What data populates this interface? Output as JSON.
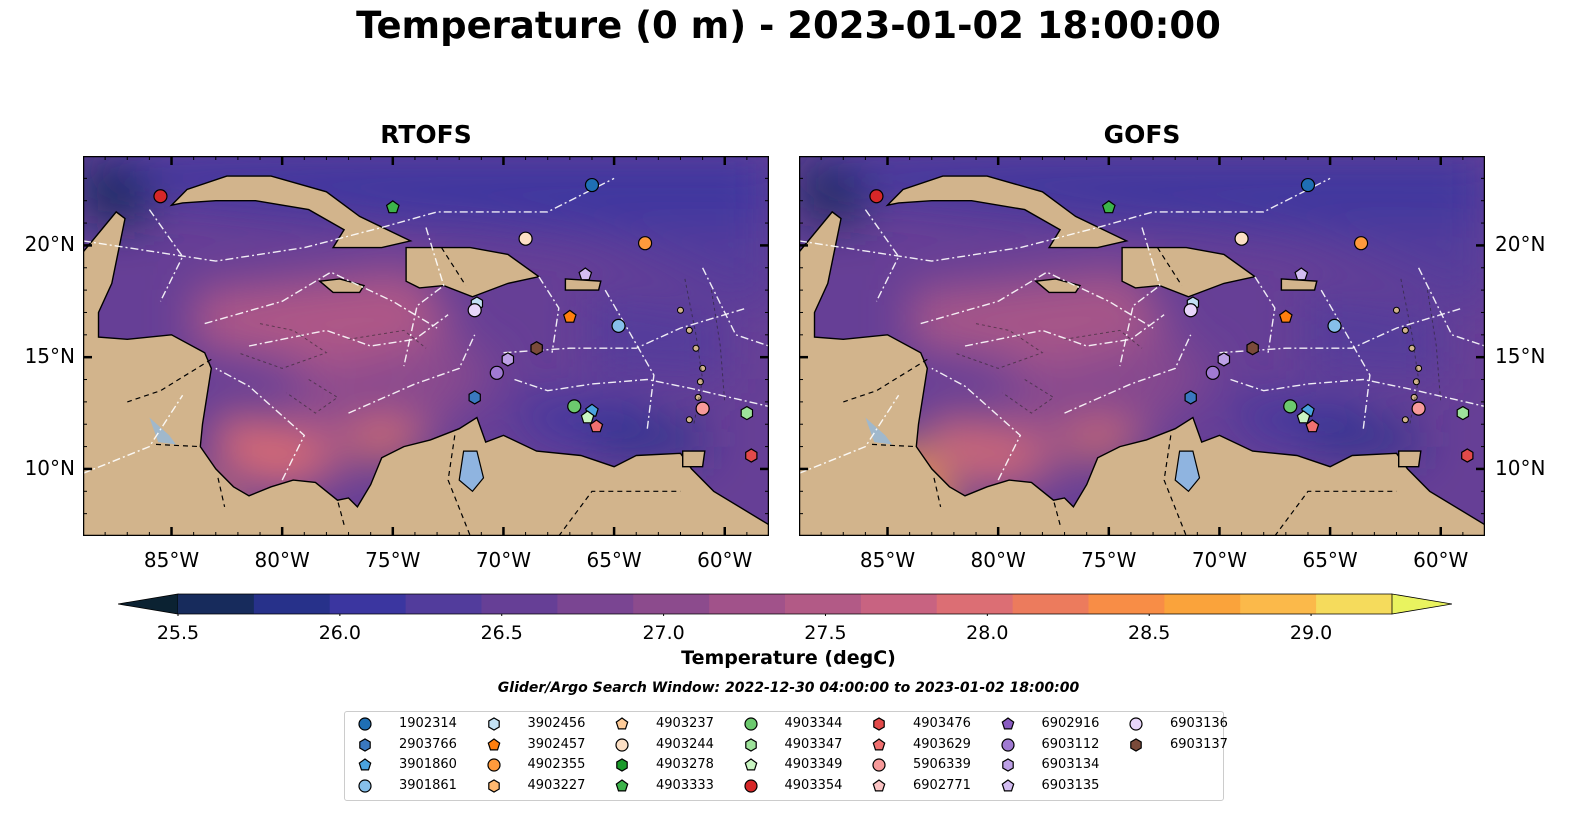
{
  "title": "Temperature (0 m) - 2023-01-02 18:00:00",
  "maps": [
    {
      "title": "RTOFS",
      "left": true
    },
    {
      "title": "GOFS",
      "left": false
    }
  ],
  "axes": {
    "lon_ticks": [
      "85°W",
      "80°W",
      "75°W",
      "70°W",
      "65°W",
      "60°W"
    ],
    "lat_ticks": [
      "20°N",
      "15°N",
      "10°N"
    ],
    "lon_values": [
      -85,
      -80,
      -75,
      -70,
      -65,
      -60
    ],
    "lat_values": [
      20,
      15,
      10
    ],
    "lon_range": [
      -89,
      -58
    ],
    "lat_range": [
      7,
      24
    ]
  },
  "colorbar": {
    "label": "Temperature (degC)",
    "ticks": [
      "25.5",
      "26.0",
      "26.5",
      "27.0",
      "27.5",
      "28.0",
      "28.5",
      "29.0"
    ],
    "range": [
      25.5,
      29.25
    ],
    "extend": "both",
    "colors": [
      "#0b2232",
      "#172b5c",
      "#27318a",
      "#3b36a0",
      "#523c9c",
      "#663f96",
      "#7a4592",
      "#8c4b8d",
      "#a1528a",
      "#b25a86",
      "#c86381",
      "#dc6e74",
      "#ec7b5d",
      "#f88d46",
      "#faa33b",
      "#fbb94a",
      "#f5db5c",
      "#e9f35f"
    ]
  },
  "search_window": "Glider/Argo Search Window: 2022-12-30 04:00:00 to 2023-01-02 18:00:00",
  "land_color": "#d2b48c",
  "legend": [
    {
      "id": "1902314",
      "marker": "circle",
      "color": "#1f6fb4"
    },
    {
      "id": "2903766",
      "marker": "hexagon",
      "color": "#3a78c0"
    },
    {
      "id": "3901860",
      "marker": "pentagon",
      "color": "#4aa3df"
    },
    {
      "id": "3901861",
      "marker": "circle",
      "color": "#86bfea"
    },
    {
      "id": "3902456",
      "marker": "hexagon",
      "color": "#c3e1f4"
    },
    {
      "id": "3902457",
      "marker": "pentagon",
      "color": "#ff7f0e"
    },
    {
      "id": "4902355",
      "marker": "circle",
      "color": "#ff9a3c"
    },
    {
      "id": "4903227",
      "marker": "hexagon",
      "color": "#ffb870"
    },
    {
      "id": "4903237",
      "marker": "pentagon",
      "color": "#ffcc99"
    },
    {
      "id": "4903244",
      "marker": "circle",
      "color": "#fde0c5"
    },
    {
      "id": "4903278",
      "marker": "hexagon",
      "color": "#1a9a2a"
    },
    {
      "id": "4903333",
      "marker": "pentagon",
      "color": "#3cb34a"
    },
    {
      "id": "4903344",
      "marker": "circle",
      "color": "#6cc96e"
    },
    {
      "id": "4903347",
      "marker": "hexagon",
      "color": "#9ee39b"
    },
    {
      "id": "4903349",
      "marker": "pentagon",
      "color": "#c9f5c2"
    },
    {
      "id": "4903354",
      "marker": "circle",
      "color": "#d62728"
    },
    {
      "id": "4903476",
      "marker": "hexagon",
      "color": "#e34a4a"
    },
    {
      "id": "4903629",
      "marker": "pentagon",
      "color": "#f07070"
    },
    {
      "id": "5906339",
      "marker": "circle",
      "color": "#f79a9a"
    },
    {
      "id": "6902771",
      "marker": "pentagon",
      "color": "#fbc4c4"
    },
    {
      "id": "6902916",
      "marker": "pentagon",
      "color": "#8a5cc2"
    },
    {
      "id": "6903112",
      "marker": "circle",
      "color": "#a07ad2"
    },
    {
      "id": "6903134",
      "marker": "hexagon",
      "color": "#bda0e6"
    },
    {
      "id": "6903135",
      "marker": "pentagon",
      "color": "#d4bdf2"
    },
    {
      "id": "6903136",
      "marker": "circle",
      "color": "#e8d6fa"
    },
    {
      "id": "6903137",
      "marker": "hexagon",
      "color": "#7a4a3a"
    }
  ],
  "floats": [
    {
      "id": "4903354",
      "lon": -85.5,
      "lat": 22.2
    },
    {
      "id": "1902314",
      "lon": -66.0,
      "lat": 22.7
    },
    {
      "id": "4903333",
      "lon": -75.0,
      "lat": 21.7
    },
    {
      "id": "4903244",
      "lon": -69.0,
      "lat": 20.3
    },
    {
      "id": "4902355",
      "lon": -63.6,
      "lat": 20.1
    },
    {
      "id": "6903135",
      "lon": -66.3,
      "lat": 18.7
    },
    {
      "id": "3902456",
      "lon": -71.2,
      "lat": 17.4
    },
    {
      "id": "6903136",
      "lon": -71.3,
      "lat": 17.1
    },
    {
      "id": "3902457",
      "lon": -67.0,
      "lat": 16.8
    },
    {
      "id": "3901861",
      "lon": -64.8,
      "lat": 16.4
    },
    {
      "id": "6903137",
      "lon": -68.5,
      "lat": 15.4
    },
    {
      "id": "6903134",
      "lon": -69.8,
      "lat": 14.9
    },
    {
      "id": "6903112",
      "lon": -70.3,
      "lat": 14.3
    },
    {
      "id": "2903766",
      "lon": -71.3,
      "lat": 13.2
    },
    {
      "id": "4903344",
      "lon": -66.8,
      "lat": 12.8
    },
    {
      "id": "3901860",
      "lon": -66.0,
      "lat": 12.6
    },
    {
      "id": "4903349",
      "lon": -66.2,
      "lat": 12.3
    },
    {
      "id": "4903629",
      "lon": -65.8,
      "lat": 11.9
    },
    {
      "id": "5906339",
      "lon": -61.0,
      "lat": 12.7
    },
    {
      "id": "4903347",
      "lon": -59.0,
      "lat": 12.5
    },
    {
      "id": "4903476",
      "lon": -58.8,
      "lat": 10.6
    }
  ]
}
